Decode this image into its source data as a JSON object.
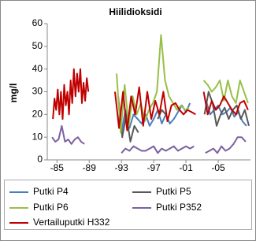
{
  "chart_data": {
    "type": "line",
    "title": "Hiilidioksidi",
    "y_label": "mg/l",
    "xlim": [
      1983.8,
      2009
    ],
    "xticks": [
      {
        "value": 1985,
        "label": "-85"
      },
      {
        "value": 1989,
        "label": "-89"
      },
      {
        "value": 1993,
        "label": "-93"
      },
      {
        "value": 1997,
        "label": "-97"
      },
      {
        "value": 2001,
        "label": "-01"
      },
      {
        "value": 2005,
        "label": "-05"
      }
    ],
    "ylim": [
      0,
      60
    ],
    "yticks": [
      0,
      10,
      20,
      30,
      40,
      50,
      60
    ],
    "series": [
      {
        "name": "Putki P4",
        "color": "#4a7ebb",
        "x": [
          1992.5,
          1993,
          1993.5,
          1994,
          1994.5,
          1995,
          1995.5,
          1996,
          1996.5,
          1997,
          1997.5,
          1998,
          1998.5,
          1999,
          1999.5,
          2000,
          2000.5,
          2001,
          2001.5,
          2002.5,
          2003.5,
          2004,
          2004.5,
          2005,
          2005.5,
          2006,
          2006.5,
          2007,
          2007.5,
          2008,
          2008.5
        ],
        "values": [
          20,
          12,
          22,
          14,
          20,
          18,
          16,
          20,
          15,
          18,
          22,
          16,
          20,
          16,
          18,
          21,
          24,
          21,
          25,
          null,
          26,
          20,
          22,
          24,
          20,
          21,
          23,
          19,
          21,
          17,
          15
        ]
      },
      {
        "name": "Putki P5",
        "color": "#595959",
        "x": [
          1992.6,
          1993.1,
          1993.6,
          1994.1,
          1994.6,
          1995.1,
          1996,
          1997.5,
          1998,
          1998.5,
          2000,
          2003.3,
          2003.8,
          2004.3,
          2004.8,
          2005.3,
          2005.8,
          2006.3,
          2006.8,
          2007.3,
          2007.8,
          2008.3,
          2008.8
        ],
        "values": [
          28,
          10,
          20,
          8,
          15,
          12,
          null,
          18,
          22,
          20,
          null,
          20,
          30,
          25,
          15,
          20,
          23,
          18,
          22,
          24,
          18,
          22,
          15
        ]
      },
      {
        "name": "Putki P6",
        "color": "#98c047",
        "x": [
          1992.4,
          1992.9,
          1993.4,
          1993.9,
          1994.4,
          1994.9,
          1995.4,
          1995.9,
          1996.4,
          1996.9,
          1997.4,
          1997.9,
          1998.4,
          1998.9,
          1999.4,
          1999.9,
          2000.4,
          2000.9,
          2001.4,
          2002.5,
          2003.2,
          2003.7,
          2004.2,
          2004.7,
          2005.2,
          2005.7,
          2006.2,
          2006.7,
          2007.2,
          2007.7,
          2008.2,
          2008.7
        ],
        "values": [
          38,
          12,
          33,
          15,
          28,
          20,
          25,
          17,
          22,
          25,
          30,
          55,
          35,
          28,
          25,
          22,
          24,
          22,
          23,
          null,
          35,
          33,
          30,
          32,
          35,
          26,
          35,
          28,
          25,
          35,
          30,
          25
        ]
      },
      {
        "name": "Putki P352",
        "color": "#7d60a0",
        "x": [
          1984.4,
          1984.8,
          1985.2,
          1985.6,
          1986,
          1986.4,
          1986.8,
          1987.2,
          1987.6,
          1988,
          1988.4,
          1990,
          1993,
          1993.5,
          1994,
          1994.5,
          1995,
          1995.5,
          1996,
          1996.5,
          1997,
          1997.5,
          1998,
          1998.5,
          1999,
          1999.5,
          2000,
          2000.5,
          2001,
          2001.5,
          2002,
          2002.7,
          2003.4,
          2003.9,
          2004.4,
          2004.9,
          2005.4,
          2005.9,
          2006.4,
          2006.9,
          2007.4,
          2007.9,
          2008.4
        ],
        "values": [
          10,
          8,
          9,
          15,
          8,
          9,
          7,
          9,
          10,
          8,
          7,
          null,
          3,
          5,
          4,
          6,
          5,
          4,
          4,
          5,
          6,
          3,
          5,
          4,
          5,
          6,
          4,
          5,
          6,
          5,
          6,
          null,
          3,
          4,
          5,
          3,
          6,
          4,
          5,
          7,
          10,
          10,
          8
        ]
      },
      {
        "name": "Vertailuputki H332",
        "color": "#c00000",
        "x": [
          1984.5,
          1984.7,
          1984.9,
          1985.1,
          1985.3,
          1985.5,
          1985.7,
          1985.9,
          1986.1,
          1986.3,
          1986.5,
          1986.7,
          1986.9,
          1987.1,
          1987.3,
          1987.5,
          1987.7,
          1987.9,
          1988.1,
          1988.3,
          1988.5,
          1988.7,
          1988.9,
          1990,
          1992.2,
          1992.7,
          1993.2,
          1993.7,
          1994.2,
          1994.7,
          1995.2,
          1995.7,
          1996.2,
          1996.7,
          1997.2,
          1997.7,
          1998.2,
          1998.7,
          1999.2,
          1999.7,
          2000.2,
          2000.7,
          2001.2,
          2001.7,
          2002.2,
          2002.7,
          2003.2,
          2003.7,
          2004.2,
          2004.7,
          2005.2,
          2005.7,
          2006.2,
          2006.7,
          2007.2,
          2007.7,
          2008.2,
          2008.7
        ],
        "values": [
          18,
          27,
          22,
          31,
          20,
          30,
          18,
          33,
          24,
          30,
          20,
          35,
          25,
          40,
          28,
          38,
          30,
          40,
          25,
          34,
          26,
          36,
          30,
          null,
          30,
          14,
          30,
          13,
          28,
          20,
          32,
          15,
          30,
          18,
          26,
          20,
          30,
          17,
          24,
          25,
          22,
          20,
          22,
          21,
          20,
          null,
          30,
          20,
          26,
          22,
          24,
          28,
          25,
          22,
          20,
          25,
          26,
          22
        ]
      }
    ]
  }
}
